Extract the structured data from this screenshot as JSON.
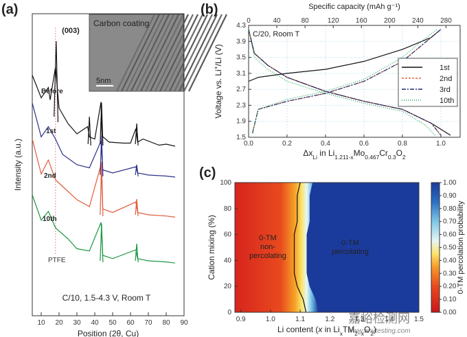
{
  "panels": {
    "a": {
      "label": "(a)",
      "xlabel": "Position (2θ, Cu)",
      "ylabel": "Intensity (a.u.)",
      "xticks": [
        "10",
        "20",
        "30",
        "40",
        "50",
        "60",
        "70",
        "80",
        "90"
      ],
      "peak_label": "(003)",
      "ptfe_label": "PTFE",
      "condition": "C/10, 1.5-4.3 V, Room T",
      "inset_title": "Carbon coating",
      "scale_bar": "5nm",
      "series_labels": [
        "Before",
        "1st",
        "2nd",
        "10th"
      ],
      "colors": {
        "Before": "#111111",
        "1st": "#2b2f8a",
        "2nd": "#e05a3a",
        "10th": "#1a9641"
      }
    },
    "b": {
      "label": "(b)",
      "top_axis_label": "Specific capacity (mAh g⁻¹)",
      "top_ticks": [
        "0",
        "40",
        "80",
        "120",
        "160",
        "200",
        "240",
        "280"
      ],
      "xlabel": "Δx_Li in Li_1.211-x Mo_0.467 Cr_0.3 O_2",
      "ylabel": "Voltage vs. Li⁺/Li (V)",
      "condition": "C/20, Room T",
      "xticks": [
        "0.0",
        "0.2",
        "0.4",
        "0.6",
        "0.8",
        "1.0"
      ],
      "yticks": [
        "1.5",
        "1.9",
        "2.3",
        "2.7",
        "3.1",
        "3.5",
        "3.9",
        "4.3"
      ],
      "legend": [
        "1st",
        "2nd",
        "3rd",
        "10th"
      ]
    },
    "c": {
      "label": "(c)",
      "xlabel": "Li content (x in Li_x TM_2-x O_2)",
      "ylabel": "Cation mixing (%)",
      "xticks": [
        "0.9",
        "1.0",
        "1.1",
        "1.2",
        "1.3",
        "1.4",
        "1.5"
      ],
      "yticks": [
        "0",
        "20",
        "40",
        "60",
        "80",
        "100"
      ],
      "region_left": [
        "0-TM",
        "non-",
        "percolating"
      ],
      "region_right": [
        "0-TM",
        "percolating"
      ],
      "colorbar_label": "0-TM percolation probability",
      "colorbar_ticks": [
        "0.00",
        "0.10",
        "0.20",
        "0.30",
        "0.40",
        "0.50",
        "0.60",
        "0.70",
        "0.80",
        "0.90",
        "1.00"
      ]
    }
  },
  "watermark": [
    "嘉峪检测网",
    "www.anytesting.com"
  ],
  "chart_data": [
    {
      "type": "line",
      "panel": "a",
      "xlabel": "Position (2θ, Cu)",
      "ylabel": "Intensity (a.u.)",
      "xlim": [
        5,
        90
      ],
      "series": [
        {
          "name": "Before",
          "x": [
            5,
            10,
            14,
            15,
            18,
            20,
            25,
            30,
            36,
            37,
            40,
            43.5,
            44,
            48,
            56,
            60,
            63,
            64,
            67,
            76,
            80,
            85
          ],
          "values": [
            0.92,
            0.7,
            0.8,
            0.68,
            1.0,
            0.6,
            0.45,
            0.35,
            0.42,
            0.32,
            0.3,
            0.66,
            0.33,
            0.27,
            0.26,
            0.26,
            0.4,
            0.27,
            0.3,
            0.24,
            0.25,
            0.23
          ]
        },
        {
          "name": "1st",
          "x": [
            5,
            10,
            14,
            18,
            22,
            30,
            37,
            43.5,
            44.5,
            50,
            63,
            64,
            70,
            80,
            85
          ],
          "values": [
            0.95,
            0.62,
            0.72,
            0.6,
            0.45,
            0.35,
            0.32,
            0.58,
            0.3,
            0.27,
            0.33,
            0.27,
            0.25,
            0.24,
            0.23
          ]
        },
        {
          "name": "2nd",
          "x": [
            5,
            10,
            14,
            18,
            25,
            30,
            37,
            43.5,
            44.5,
            50,
            63,
            64,
            70,
            80,
            85
          ],
          "values": [
            0.9,
            0.6,
            0.72,
            0.55,
            0.45,
            0.38,
            0.32,
            0.68,
            0.3,
            0.27,
            0.36,
            0.27,
            0.25,
            0.24,
            0.23
          ]
        },
        {
          "name": "10th",
          "x": [
            5,
            10,
            14,
            18,
            25,
            30,
            37,
            43.5,
            44.5,
            50,
            63,
            64,
            70,
            80,
            85
          ],
          "values": [
            0.85,
            0.62,
            0.7,
            0.55,
            0.45,
            0.36,
            0.34,
            0.6,
            0.3,
            0.27,
            0.35,
            0.27,
            0.25,
            0.24,
            0.23
          ]
        }
      ]
    },
    {
      "type": "line",
      "panel": "b",
      "xlabel": "Δx_Li in Li_1.211-x Mo_0.467 Cr_0.3 O_2",
      "ylabel": "Voltage vs. Li⁺/Li (V)",
      "xlim": [
        0,
        1.1
      ],
      "ylim": [
        1.5,
        4.3
      ],
      "series": [
        {
          "name": "1st",
          "charge": {
            "x": [
              0,
              0.05,
              0.2,
              0.4,
              0.6,
              0.8,
              0.95,
              1.0
            ],
            "y": [
              2.9,
              3.0,
              3.1,
              3.2,
              3.4,
              3.7,
              4.0,
              4.2
            ]
          },
          "discharge": {
            "x": [
              0,
              0.03,
              0.1,
              0.2,
              0.4,
              0.6,
              0.8,
              0.95,
              1.05
            ],
            "y": [
              4.2,
              3.6,
              3.3,
              3.0,
              2.65,
              2.4,
              2.2,
              1.85,
              1.55
            ]
          }
        },
        {
          "name": "2nd",
          "charge": {
            "x": [
              0.02,
              0.05,
              0.2,
              0.4,
              0.6,
              0.8,
              0.9,
              1.0
            ],
            "y": [
              1.6,
              2.2,
              2.4,
              2.6,
              2.9,
              3.4,
              3.8,
              4.2
            ]
          },
          "discharge": {
            "x": [
              0,
              0.03,
              0.1,
              0.2,
              0.4,
              0.6,
              0.8,
              0.95,
              1.0
            ],
            "y": [
              4.2,
              3.6,
              3.3,
              3.0,
              2.65,
              2.4,
              2.2,
              1.85,
              1.55
            ]
          }
        },
        {
          "name": "3rd",
          "charge": {
            "x": [
              0.02,
              0.05,
              0.2,
              0.4,
              0.6,
              0.8,
              0.9,
              1.0
            ],
            "y": [
              1.6,
              2.2,
              2.4,
              2.6,
              2.9,
              3.4,
              3.8,
              4.2
            ]
          },
          "discharge": {
            "x": [
              0,
              0.03,
              0.1,
              0.2,
              0.4,
              0.6,
              0.8,
              0.95,
              1.0
            ],
            "y": [
              4.2,
              3.6,
              3.3,
              3.0,
              2.65,
              2.4,
              2.2,
              1.85,
              1.55
            ]
          }
        },
        {
          "name": "10th",
          "charge": {
            "x": [
              0.02,
              0.05,
              0.2,
              0.4,
              0.6,
              0.8,
              0.9,
              0.98
            ],
            "y": [
              1.6,
              2.2,
              2.45,
              2.65,
              2.95,
              3.5,
              3.9,
              4.2
            ]
          },
          "discharge": {
            "x": [
              0,
              0.03,
              0.1,
              0.2,
              0.4,
              0.6,
              0.8,
              0.92,
              0.97
            ],
            "y": [
              4.2,
              3.5,
              3.2,
              2.9,
              2.6,
              2.35,
              2.15,
              1.8,
              1.55
            ]
          }
        }
      ]
    },
    {
      "type": "heatmap",
      "panel": "c",
      "xlabel": "Li content (x in Li_x TM_2-x O_2)",
      "ylabel": "Cation mixing (%)",
      "xlim": [
        0.88,
        1.5
      ],
      "ylim": [
        0,
        100
      ],
      "zlim": [
        0,
        1
      ],
      "threshold_curve": {
        "y": [
          0,
          10,
          20,
          30,
          40,
          50,
          60,
          70,
          80,
          90,
          100
        ],
        "x": [
          1.12,
          1.11,
          1.09,
          1.08,
          1.08,
          1.08,
          1.08,
          1.09,
          1.09,
          1.09,
          1.1
        ]
      }
    }
  ]
}
